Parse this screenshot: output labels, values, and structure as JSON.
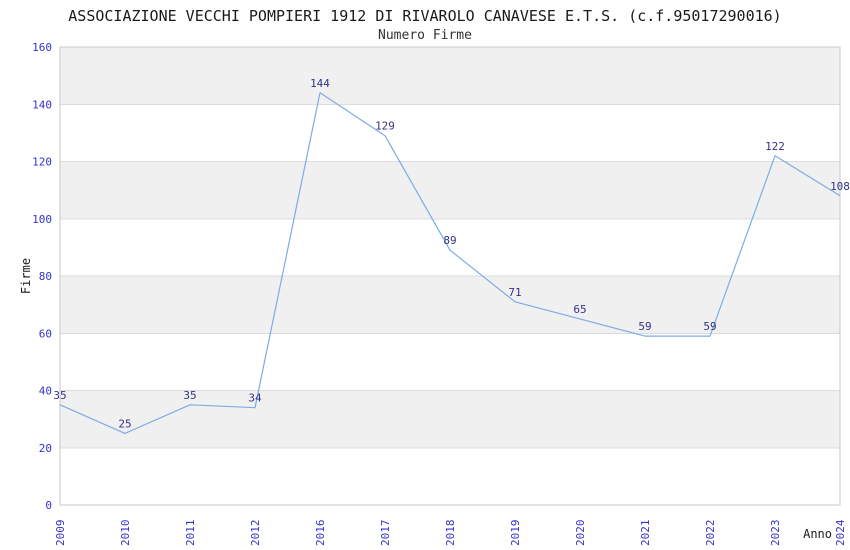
{
  "chart_data": {
    "type": "line",
    "title": "ASSOCIAZIONE VECCHI POMPIERI 1912 DI RIVAROLO CANAVESE E.T.S. (c.f.95017290016)",
    "subtitle": "Numero Firme",
    "xlabel": "Anno",
    "ylabel": "Firme",
    "categories": [
      "2009",
      "2010",
      "2011",
      "2012",
      "2016",
      "2017",
      "2018",
      "2019",
      "2020",
      "2021",
      "2022",
      "2023",
      "2024"
    ],
    "values": [
      35,
      25,
      35,
      34,
      144,
      129,
      89,
      71,
      65,
      59,
      59,
      122,
      108
    ],
    "ylim": [
      0,
      160
    ],
    "ytick_step": 20,
    "ytick_labels": [
      "0",
      "20",
      "40",
      "60",
      "80",
      "100",
      "120",
      "140",
      "160"
    ],
    "grid": true,
    "legend": "none",
    "band_fill_order": "top_band_gray_alternating",
    "colors": {
      "line": "#7dace4",
      "tick_label": "#3333cc",
      "data_label": "#333388",
      "band": "#f0f0f0",
      "gridline": "#dcdcdc",
      "border": "#c8c8c8",
      "title": "#1a1a1a",
      "axis_label": "#1a1a1a",
      "background": "#ffffff"
    }
  }
}
